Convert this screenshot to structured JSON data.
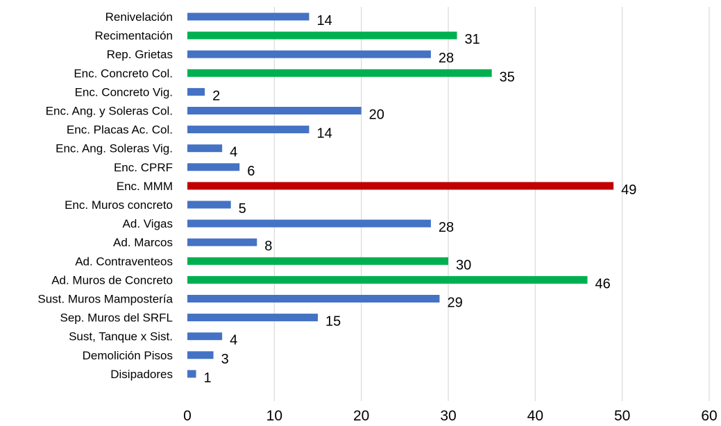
{
  "chart_data": {
    "type": "bar",
    "orientation": "horizontal",
    "title": "",
    "xlabel": "",
    "ylabel": "",
    "xlim": [
      0,
      60
    ],
    "x_ticks": [
      0,
      10,
      20,
      30,
      40,
      50,
      60
    ],
    "grid": true,
    "legend": "none",
    "colors": {
      "blue": "#4472c4",
      "green": "#00b050",
      "red": "#c00000"
    },
    "categories": [
      "Renivelación",
      "Recimentación",
      "Rep.  Grietas",
      "Enc.  Concreto Col.",
      "Enc. Concreto Vig.",
      "Enc. Ang. y Soleras Col.",
      "Enc. Placas Ac. Col.",
      "Enc. Ang. Soleras Vig.",
      "Enc. CPRF",
      "Enc. MMM",
      "Enc. Muros concreto",
      "Ad. Vigas",
      "Ad. Marcos",
      "Ad. Contraventeos",
      "Ad. Muros de Concreto",
      "Sust. Muros Mampostería",
      "Sep. Muros del SRFL",
      "Sust, Tanque x Sist.",
      "Demolición Pisos",
      "Disipadores"
    ],
    "values": [
      14,
      31,
      28,
      35,
      2,
      20,
      14,
      4,
      6,
      49,
      5,
      28,
      8,
      30,
      46,
      29,
      15,
      4,
      3,
      1
    ],
    "bar_colors": [
      "#4472c4",
      "#00b050",
      "#4472c4",
      "#00b050",
      "#4472c4",
      "#4472c4",
      "#4472c4",
      "#4472c4",
      "#4472c4",
      "#c00000",
      "#4472c4",
      "#4472c4",
      "#4472c4",
      "#00b050",
      "#00b050",
      "#4472c4",
      "#4472c4",
      "#4472c4",
      "#4472c4",
      "#4472c4"
    ]
  }
}
